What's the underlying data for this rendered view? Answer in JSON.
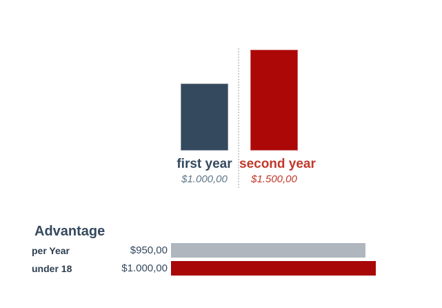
{
  "chart_data": [
    {
      "type": "bar",
      "orientation": "vertical",
      "categories": [
        "first year",
        "second year"
      ],
      "values": [
        1000,
        1500
      ],
      "value_labels": [
        "$1.000,00",
        "$1.500,00"
      ],
      "bar_colors": [
        "#34495e",
        "#ad0808"
      ],
      "category_label_colors": [
        "#34495e",
        "#c0392b"
      ],
      "value_label_colors": [
        "#5f7789",
        "#c0392b"
      ],
      "ylim": [
        0,
        1500
      ],
      "grid": false,
      "separator": "dotted-vertical-line"
    },
    {
      "type": "bar",
      "orientation": "horizontal",
      "title": "Advantage",
      "categories": [
        "per Year",
        "under 18"
      ],
      "values": [
        950,
        1000
      ],
      "value_labels": [
        "$950,00",
        "$1.000,00"
      ],
      "bar_colors": [
        "#afb6bd",
        "#a80808"
      ],
      "xlim": [
        0,
        1000
      ],
      "grid": false
    }
  ],
  "colors": {
    "dark_slate": "#34495e",
    "label_dark": "#2c3e50",
    "muted_slate_value": "#5f7789",
    "red_bar": "#ad0808",
    "red_text": "#c0392b",
    "gray_bar": "#afb6bd",
    "divider": "#cccccc",
    "background": "#ffffff"
  }
}
